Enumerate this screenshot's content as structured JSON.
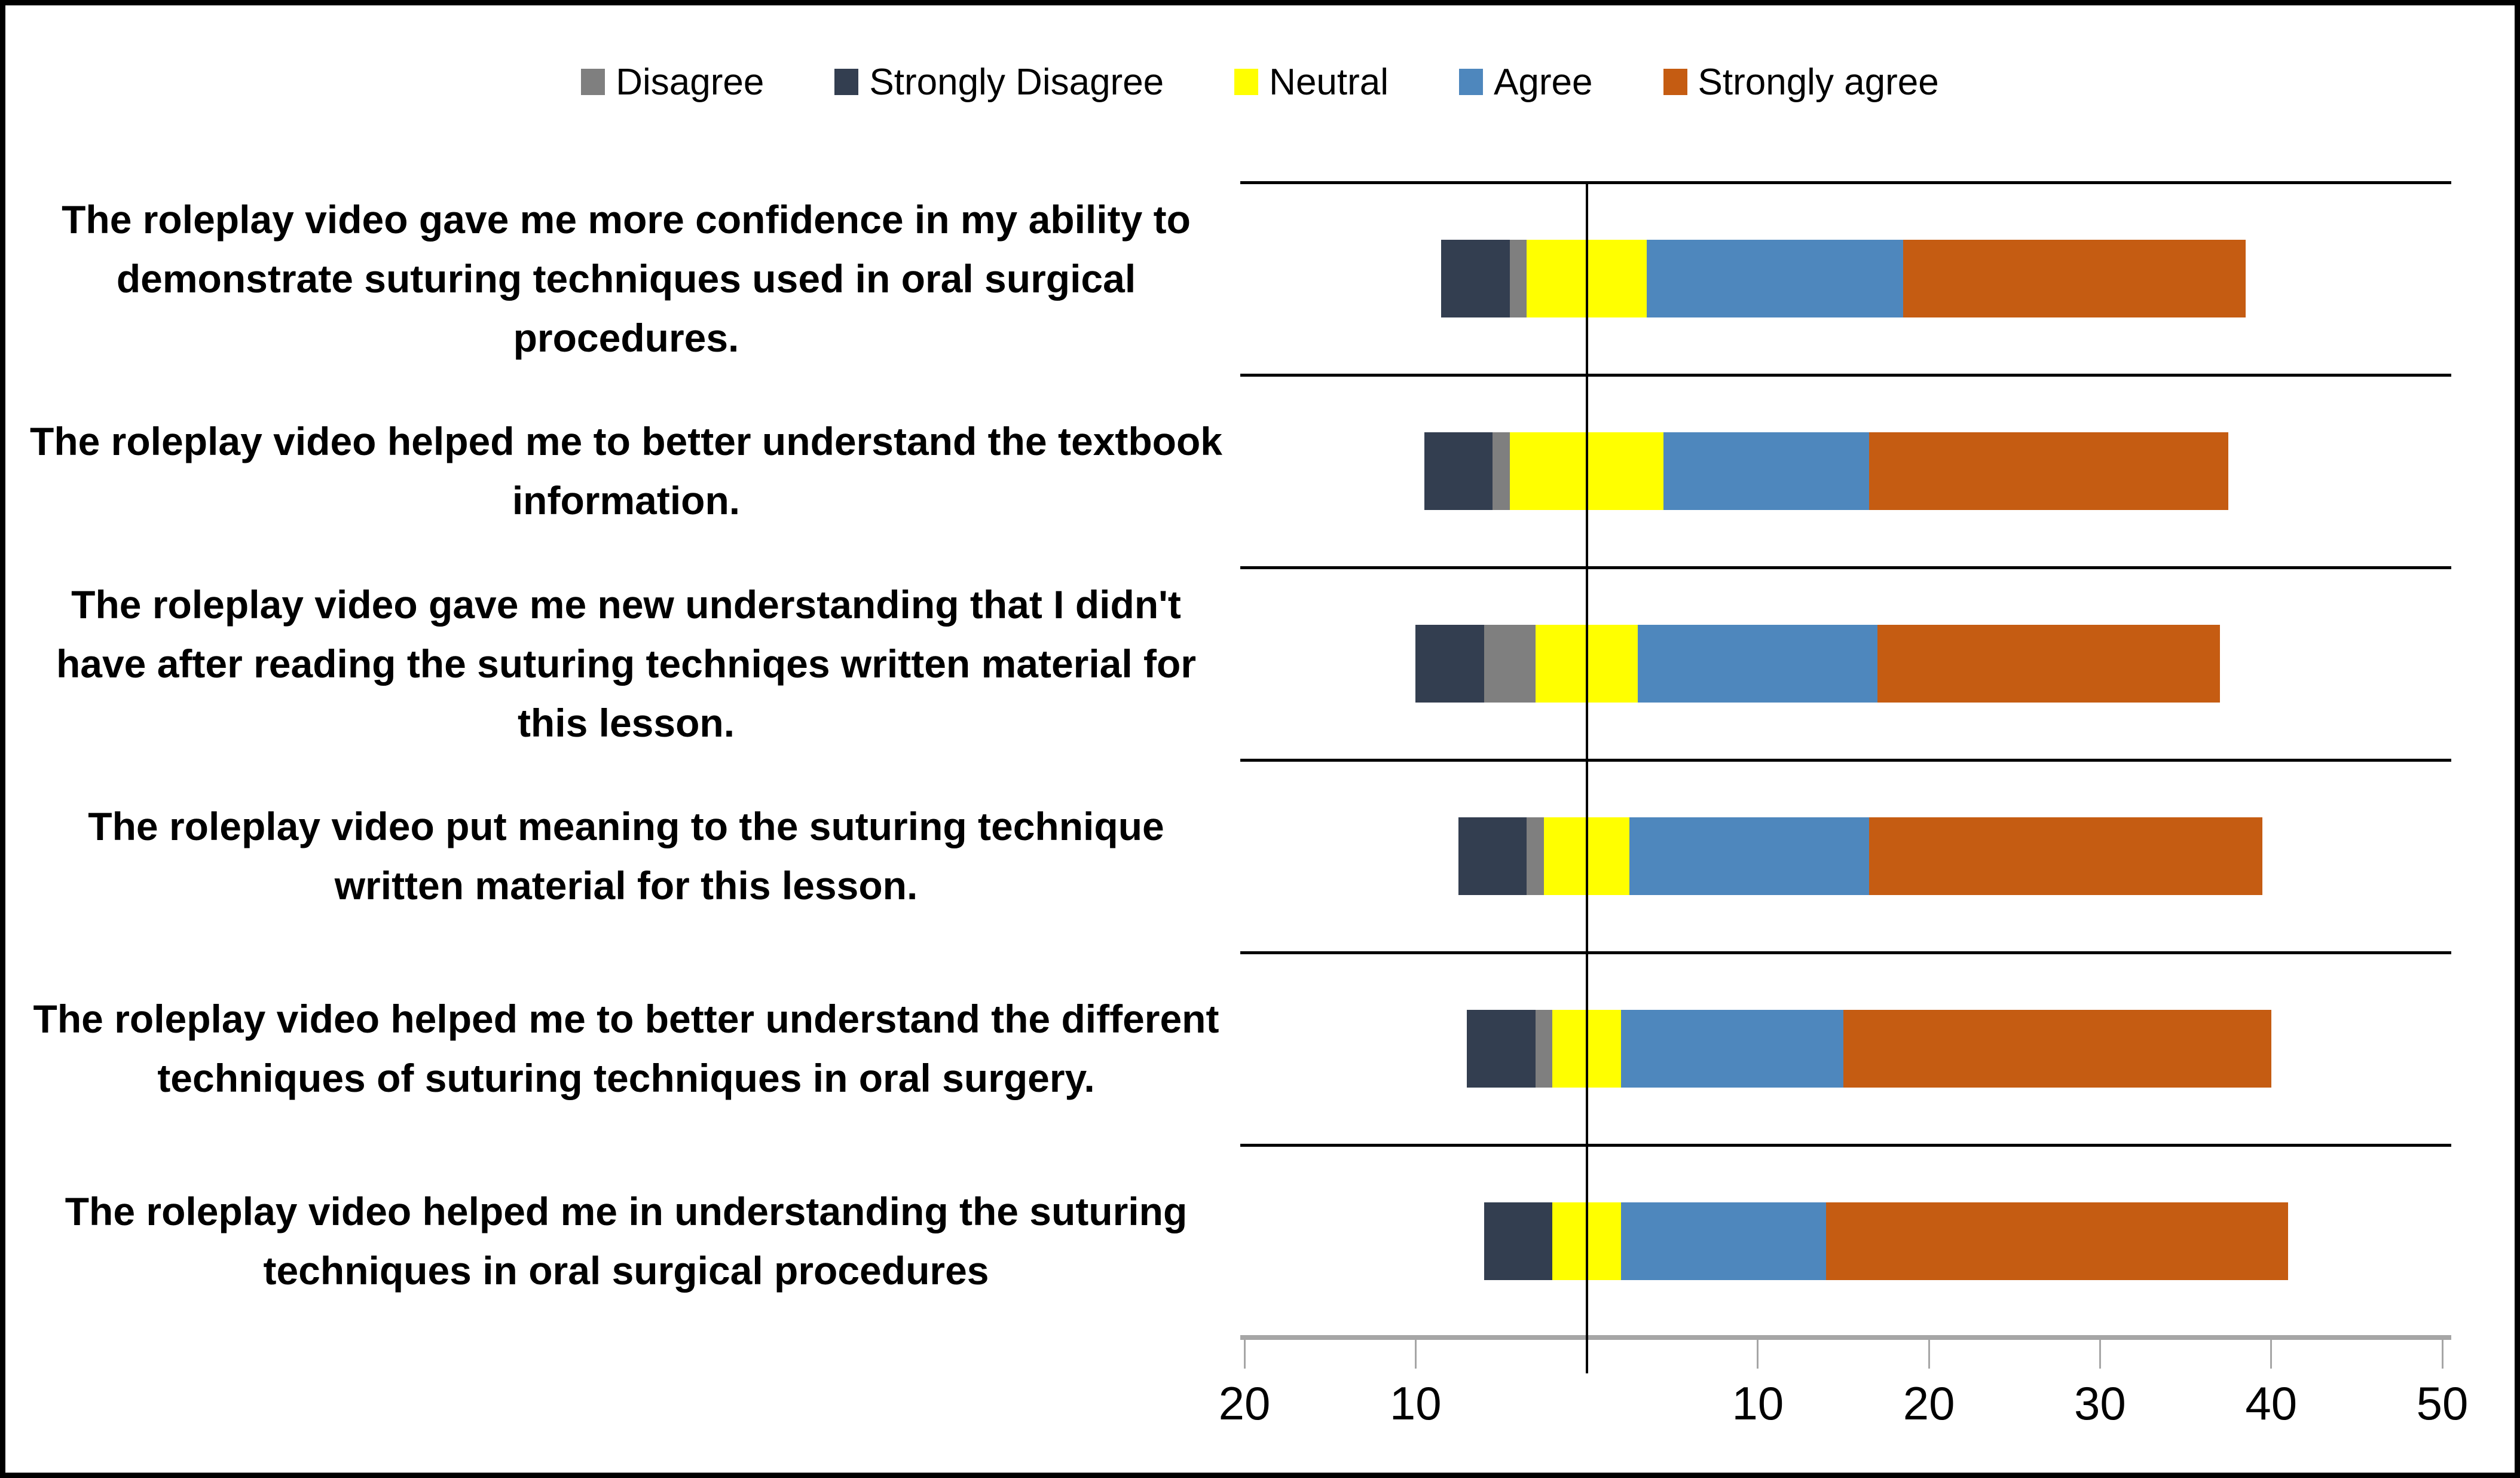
{
  "chart_data": {
    "type": "bar",
    "variant": "horizontal-diverging-stacked-likert",
    "title": "",
    "legend_position": "top-center",
    "grid": "row-separators-only",
    "legend": [
      {
        "label": "Disagree",
        "color": "#7f7f7f"
      },
      {
        "label": "Strongly Disagree",
        "color": "#333e50"
      },
      {
        "label": "Neutral",
        "color": "#ffff00"
      },
      {
        "label": "Agree",
        "color": "#4e87bd"
      },
      {
        "label": "Strongly agree",
        "color": "#c55c12"
      }
    ],
    "categories": [
      "The roleplay video gave me more confidence in my ability to demonstrate suturing techniques used in oral surgical procedures.",
      "The roleplay video helped me to better understand the textbook information.",
      "The roleplay video gave me new understanding that I didn't have after reading the suturing techniqes written material for this lesson.",
      "The roleplay video put meaning to the suturing technique written material for this lesson.",
      "The roleplay video helped me to better understand the different techniques of suturing techniques in oral surgery.",
      "The roleplay video helped me in understanding the suturing techniques in oral surgical procedures"
    ],
    "series": [
      {
        "name": "Strongly Disagree",
        "color": "#333e50",
        "values": [
          4,
          4,
          4,
          4,
          4,
          4
        ]
      },
      {
        "name": "Disagree",
        "color": "#7f7f7f",
        "values": [
          1,
          1,
          3,
          1,
          1,
          0
        ]
      },
      {
        "name": "Neutral",
        "color": "#ffff00",
        "values": [
          7,
          9,
          6,
          5,
          4,
          4
        ]
      },
      {
        "name": "Agree",
        "color": "#4e87bd",
        "values": [
          15,
          12,
          14,
          14,
          13,
          12
        ]
      },
      {
        "name": "Strongly agree",
        "color": "#c55c12",
        "values": [
          20,
          21,
          20,
          23,
          25,
          27
        ]
      }
    ],
    "stacking_note": "Bars stacked left-to-right as Strongly Disagree, Disagree, Neutral, Agree, Strongly agree; Neutral segment centered on the zero baseline",
    "x_axis": {
      "range_units": [
        -20,
        50
      ],
      "ticks": [
        -20,
        -10,
        0,
        10,
        20,
        30,
        40,
        50
      ],
      "tick_labels": [
        "20",
        "10",
        "",
        "10",
        "20",
        "30",
        "40",
        "50"
      ],
      "line_color": "#a6a6a6",
      "baseline_color": "#000000"
    }
  }
}
